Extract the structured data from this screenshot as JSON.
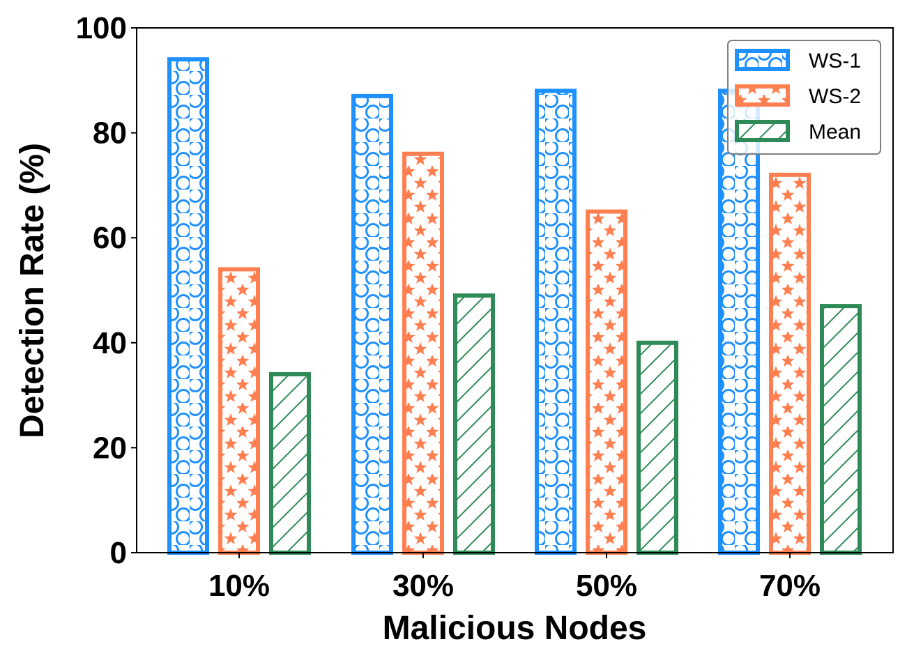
{
  "chart_data": {
    "type": "bar",
    "xlabel": "Malicious Nodes",
    "ylabel": "Detection Rate (%)",
    "categories": [
      "10%",
      "30%",
      "50%",
      "70%"
    ],
    "ylim": [
      0,
      100
    ],
    "yticks": [
      0,
      20,
      40,
      60,
      80,
      100
    ],
    "grid": false,
    "legend_position": "top-right",
    "series": [
      {
        "name": "WS-1",
        "values": [
          94,
          87,
          88,
          88
        ],
        "color": "#1E90FF",
        "pattern": "circles"
      },
      {
        "name": "WS-2",
        "values": [
          54,
          76,
          65,
          72
        ],
        "color": "#FF7F50",
        "pattern": "stars"
      },
      {
        "name": "Mean",
        "values": [
          34,
          49,
          40,
          47
        ],
        "color": "#2E8B57",
        "pattern": "diagonal-hatch"
      }
    ]
  }
}
